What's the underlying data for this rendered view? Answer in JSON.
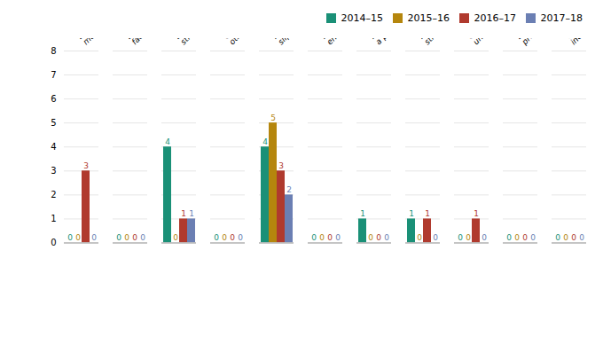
{
  "chart_data": {
    "type": "bar",
    "categories": [
      "Being hit by\nmoving objects",
      "Biological\nfactors",
      "Body\nstressing",
      "Chemicals and\nother substances",
      "Falls, trips and\nslips of a person",
      "Heat, electricity and other\nenvironmental factors",
      "Hitting objects with\na part of the body",
      "Mental\nstress",
      "Other and\nunspecified",
      "Sound and\npressure",
      "Vehicle\nincidents"
    ],
    "series": [
      {
        "name": "2014–15",
        "color": "#1a9077",
        "values": [
          0,
          0,
          4,
          0,
          4,
          0,
          1,
          1,
          0,
          0,
          0
        ]
      },
      {
        "name": "2015–16",
        "color": "#b5860d",
        "values": [
          0,
          0,
          0,
          0,
          5,
          0,
          0,
          0,
          0,
          0,
          0
        ]
      },
      {
        "name": "2016–17",
        "color": "#b03a2e",
        "values": [
          3,
          0,
          1,
          0,
          3,
          0,
          0,
          1,
          1,
          0,
          0
        ]
      },
      {
        "name": "2017–18",
        "color": "#6b7fb3",
        "values": [
          0,
          0,
          1,
          0,
          2,
          0,
          0,
          0,
          0,
          0,
          0
        ]
      }
    ],
    "ylim": [
      0,
      8
    ],
    "yticks": [
      0,
      1,
      2,
      3,
      4,
      5,
      6,
      7,
      8
    ],
    "grid": true,
    "legend": "upper right",
    "data_labels": true
  }
}
